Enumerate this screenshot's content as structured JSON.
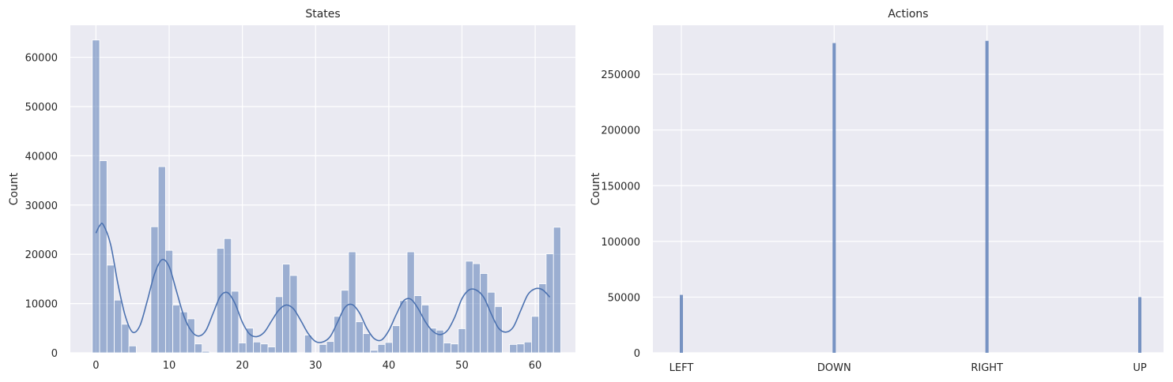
{
  "style": {
    "axes_bg": "#eaeaf2",
    "grid": "#ffffff",
    "bar_fill": "#4c72b0",
    "bar_opacity": 0.5,
    "kde_color": "#4c72b0"
  },
  "chart_data": [
    {
      "type": "bar",
      "title": "States",
      "xlabel": "",
      "ylabel": "Count",
      "xlim": [
        -3.5,
        65.5
      ],
      "ylim": [
        0,
        66500
      ],
      "xticks": [
        0,
        10,
        20,
        30,
        40,
        50,
        60
      ],
      "yticks": [
        0,
        10000,
        20000,
        30000,
        40000,
        50000,
        60000
      ],
      "grid": true,
      "bins": [
        [
          0,
          63500
        ],
        [
          1,
          39000
        ],
        [
          2,
          17800
        ],
        [
          3,
          10700
        ],
        [
          4,
          5800
        ],
        [
          5,
          1400
        ],
        [
          8,
          25600
        ],
        [
          9,
          37800
        ],
        [
          10,
          20800
        ],
        [
          11,
          9700
        ],
        [
          12,
          8300
        ],
        [
          13,
          6900
        ],
        [
          14,
          1800
        ],
        [
          15,
          300
        ],
        [
          17,
          21200
        ],
        [
          18,
          23200
        ],
        [
          19,
          12500
        ],
        [
          20,
          2000
        ],
        [
          21,
          5000
        ],
        [
          22,
          2200
        ],
        [
          23,
          1800
        ],
        [
          24,
          1200
        ],
        [
          25,
          11400
        ],
        [
          26,
          18000
        ],
        [
          27,
          15700
        ],
        [
          29,
          3600
        ],
        [
          31,
          1700
        ],
        [
          32,
          2300
        ],
        [
          33,
          7400
        ],
        [
          34,
          12700
        ],
        [
          35,
          20500
        ],
        [
          36,
          6300
        ],
        [
          37,
          3900
        ],
        [
          38,
          500
        ],
        [
          39,
          1700
        ],
        [
          40,
          2100
        ],
        [
          41,
          5500
        ],
        [
          42,
          10600
        ],
        [
          43,
          20500
        ],
        [
          44,
          11600
        ],
        [
          45,
          9700
        ],
        [
          46,
          5000
        ],
        [
          47,
          4600
        ],
        [
          48,
          2000
        ],
        [
          49,
          1800
        ],
        [
          50,
          4900
        ],
        [
          51,
          18600
        ],
        [
          52,
          18100
        ],
        [
          53,
          16100
        ],
        [
          54,
          12300
        ],
        [
          55,
          9400
        ],
        [
          57,
          1700
        ],
        [
          58,
          1800
        ],
        [
          59,
          2200
        ],
        [
          60,
          7400
        ],
        [
          61,
          14000
        ],
        [
          62,
          20100
        ],
        [
          63,
          25500
        ]
      ],
      "kde": [
        [
          0,
          24300
        ],
        [
          0.5,
          25800
        ],
        [
          1,
          26000
        ],
        [
          2,
          22000
        ],
        [
          3,
          14000
        ],
        [
          4,
          7500
        ],
        [
          5,
          4200
        ],
        [
          6,
          5500
        ],
        [
          7,
          10500
        ],
        [
          8,
          16000
        ],
        [
          9,
          18900
        ],
        [
          10,
          17500
        ],
        [
          11,
          12500
        ],
        [
          12,
          7500
        ],
        [
          13,
          4500
        ],
        [
          14,
          3400
        ],
        [
          15,
          4500
        ],
        [
          16,
          8000
        ],
        [
          17,
          11500
        ],
        [
          18,
          12200
        ],
        [
          19,
          10000
        ],
        [
          20,
          6200
        ],
        [
          21,
          3800
        ],
        [
          22,
          3300
        ],
        [
          23,
          4200
        ],
        [
          24,
          6500
        ],
        [
          25,
          8700
        ],
        [
          26,
          9700
        ],
        [
          27,
          8900
        ],
        [
          28,
          6500
        ],
        [
          29,
          3900
        ],
        [
          30,
          2300
        ],
        [
          31,
          2200
        ],
        [
          32,
          3300
        ],
        [
          33,
          6200
        ],
        [
          34,
          9200
        ],
        [
          35,
          9800
        ],
        [
          36,
          8100
        ],
        [
          37,
          5000
        ],
        [
          38,
          2900
        ],
        [
          39,
          2600
        ],
        [
          40,
          4500
        ],
        [
          41,
          7700
        ],
        [
          42,
          10500
        ],
        [
          43,
          10900
        ],
        [
          44,
          9000
        ],
        [
          45,
          6300
        ],
        [
          46,
          4400
        ],
        [
          47,
          3700
        ],
        [
          48,
          4500
        ],
        [
          49,
          7200
        ],
        [
          50,
          11000
        ],
        [
          51,
          12800
        ],
        [
          52,
          12700
        ],
        [
          53,
          11200
        ],
        [
          54,
          7900
        ],
        [
          55,
          5000
        ],
        [
          56,
          4200
        ],
        [
          57,
          5200
        ],
        [
          58,
          8500
        ],
        [
          59,
          11800
        ],
        [
          60,
          13000
        ],
        [
          61,
          12800
        ],
        [
          62,
          11300
        ]
      ]
    },
    {
      "type": "bar",
      "title": "Actions",
      "xlabel": "",
      "ylabel": "Count",
      "categories": [
        "LEFT",
        "DOWN",
        "RIGHT",
        "UP"
      ],
      "values": [
        52000,
        278000,
        280000,
        50000
      ],
      "ylim": [
        0,
        294000
      ],
      "yticks": [
        0,
        50000,
        100000,
        150000,
        200000,
        250000
      ],
      "grid": true
    }
  ]
}
